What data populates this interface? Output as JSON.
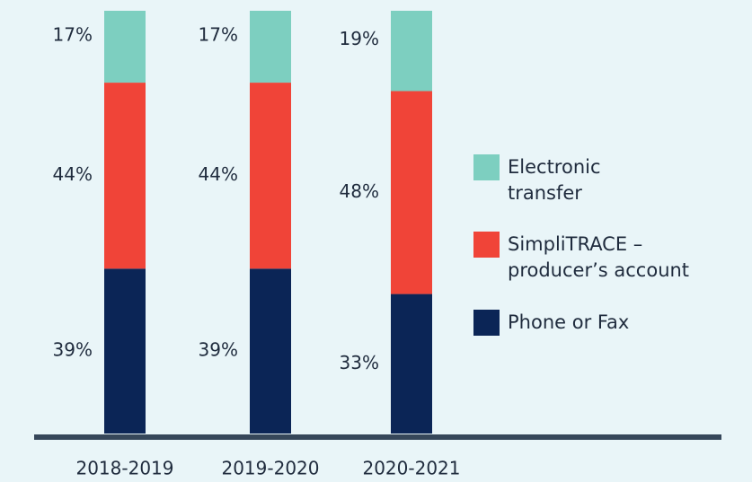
{
  "chart_data": {
    "type": "stacked_bar",
    "categories": [
      "2018-2019",
      "2019-2020",
      "2020-2021"
    ],
    "series": [
      {
        "name": "Phone or Fax",
        "color": "#0b2556",
        "values": [
          39,
          39,
          33
        ],
        "value_labels": [
          "39%",
          "39%",
          "33%"
        ]
      },
      {
        "name": "SimpliTRACE – producer’s account",
        "color": "#f04438",
        "values": [
          44,
          44,
          48
        ],
        "value_labels": [
          "44%",
          "44%",
          "48%"
        ]
      },
      {
        "name": "Electronic transfer",
        "color": "#7dcfc0",
        "values": [
          17,
          17,
          19
        ],
        "value_labels": [
          "17%",
          "17%",
          "19%"
        ]
      }
    ],
    "ylim": [
      0,
      100
    ],
    "legend": "right"
  }
}
